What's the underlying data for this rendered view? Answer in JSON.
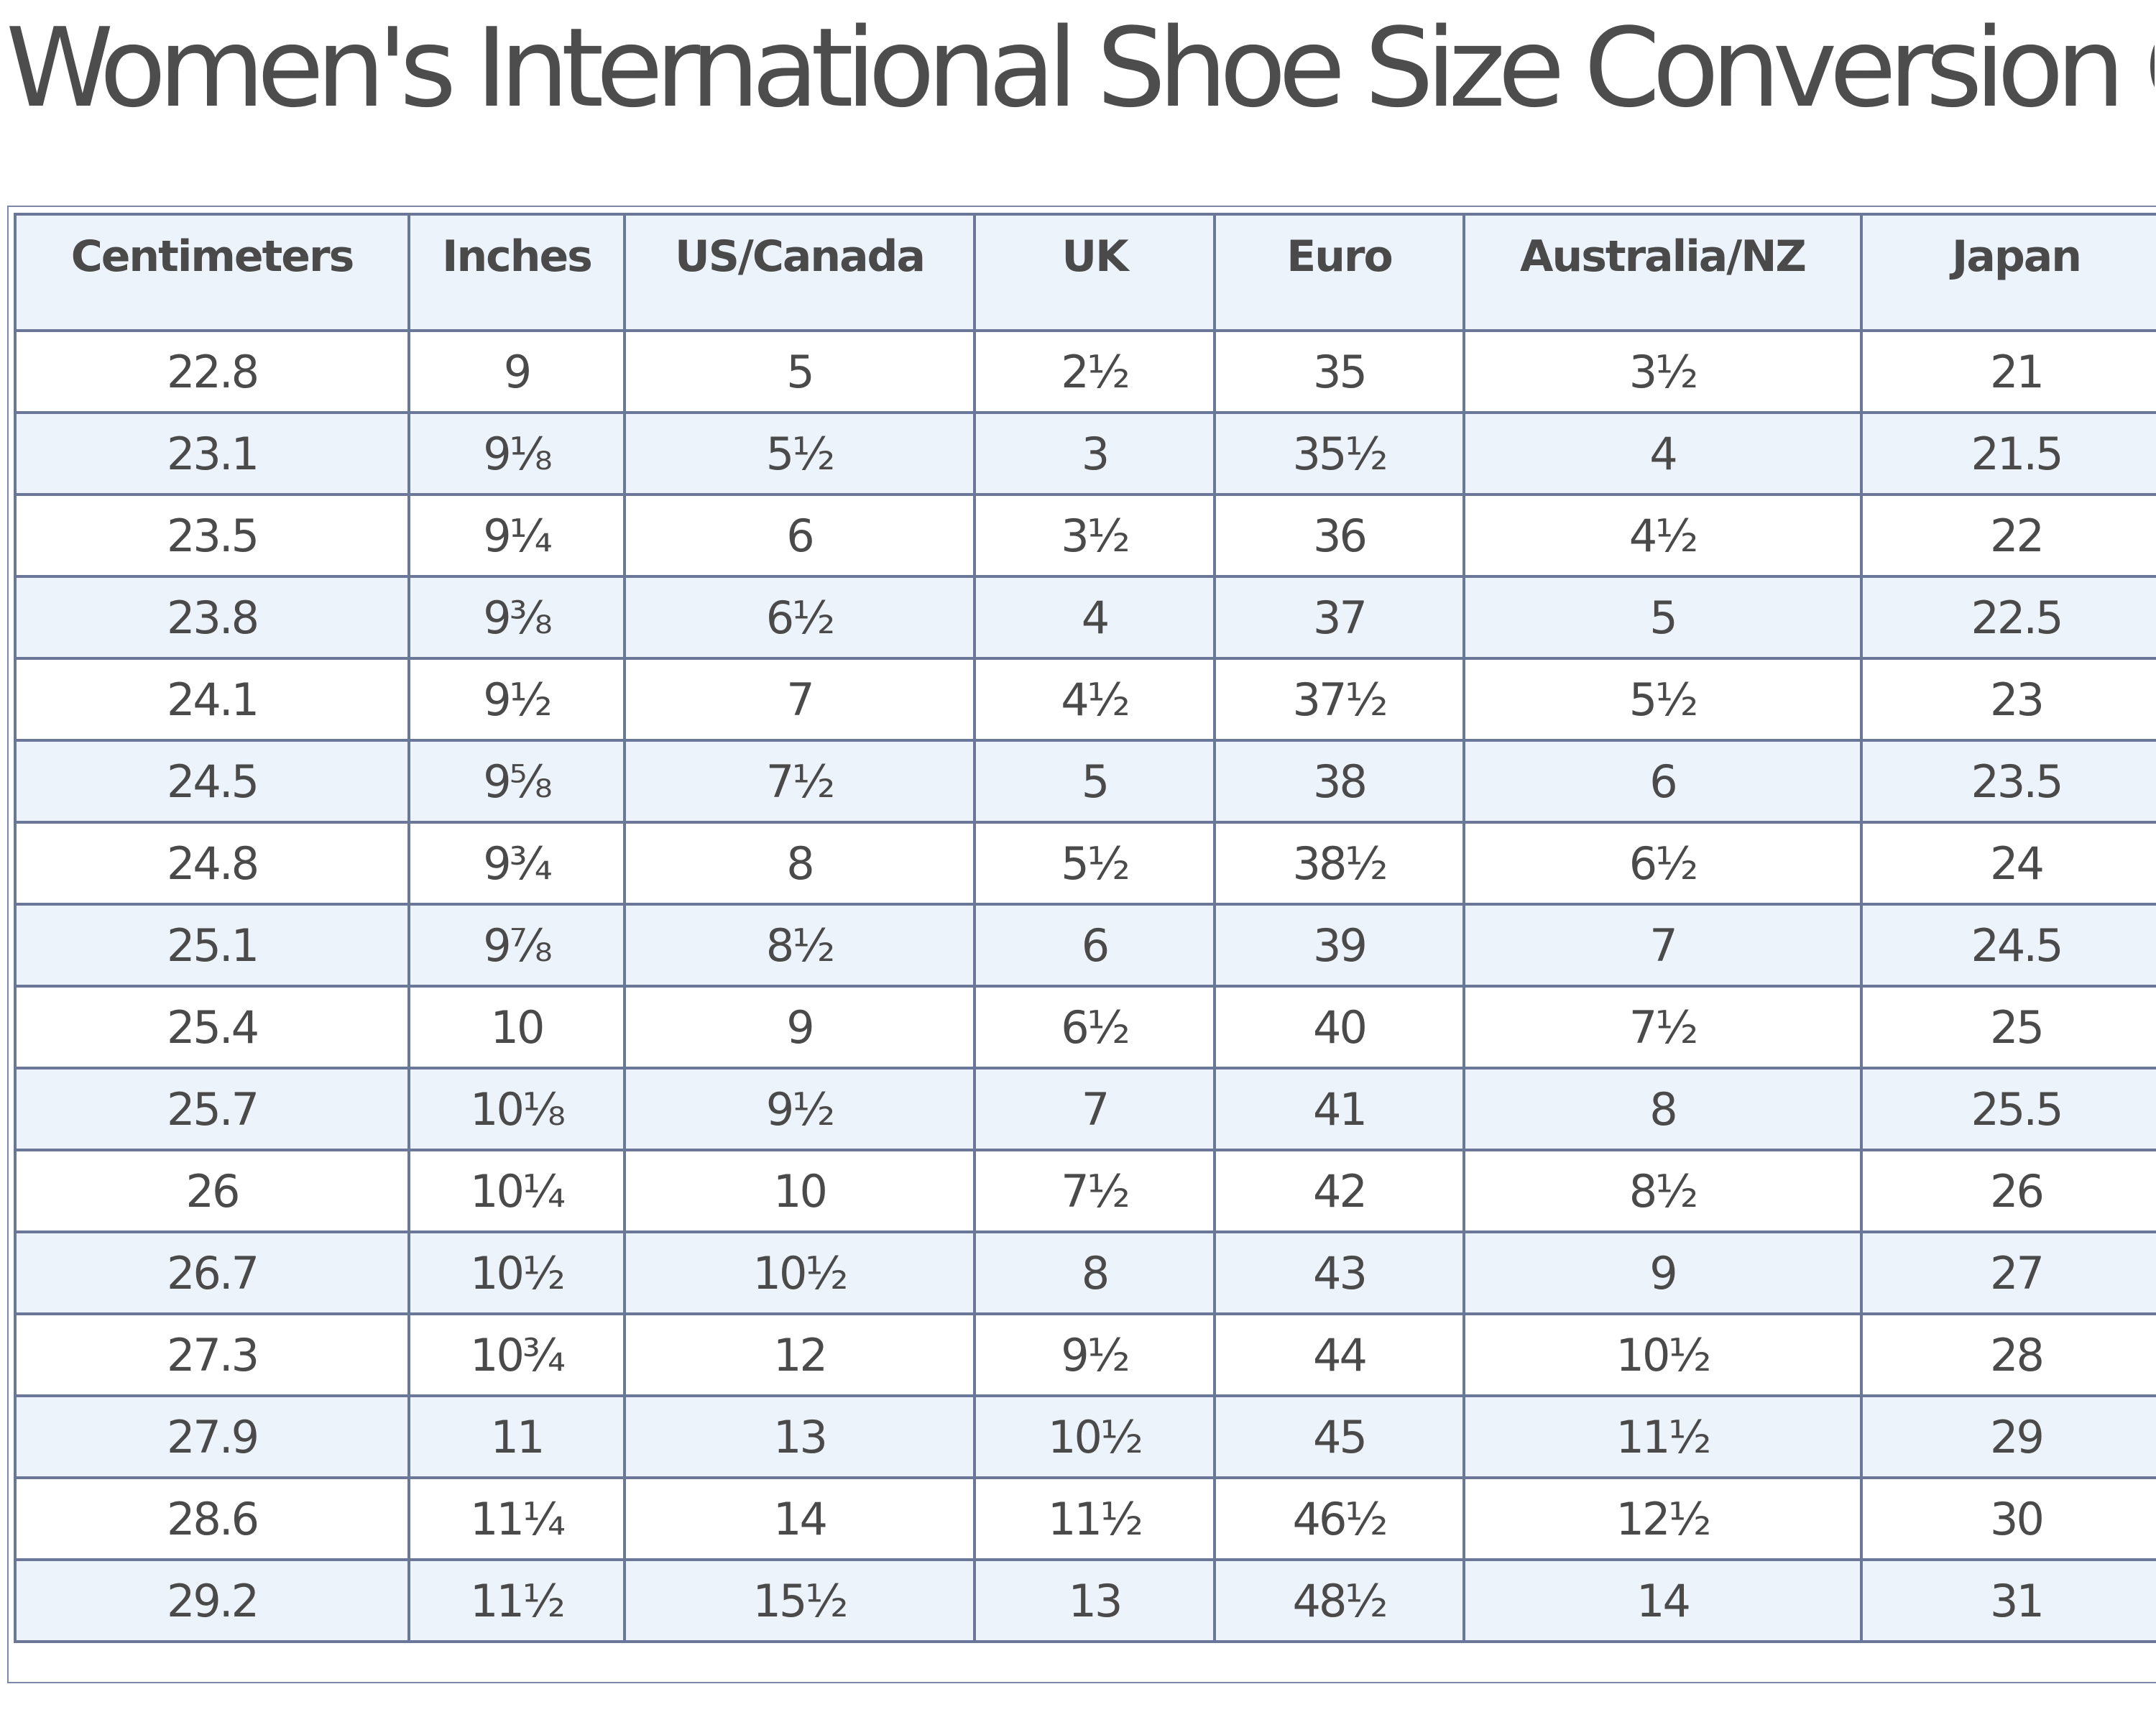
{
  "title": "Women's International Shoe Size Conversion Chart",
  "columns": [
    "Centimeters",
    "Inches",
    "US/Canada",
    "UK",
    "Euro",
    "Australia/NZ",
    "Japan"
  ],
  "rows": [
    [
      "22.8",
      "9",
      "5",
      "2½",
      "35",
      "3½",
      "21"
    ],
    [
      "23.1",
      "9⅛",
      "5½",
      "3",
      "35½",
      "4",
      "21.5"
    ],
    [
      "23.5",
      "9¼",
      "6",
      "3½",
      "36",
      "4½",
      "22"
    ],
    [
      "23.8",
      "9⅜",
      "6½",
      "4",
      "37",
      "5",
      "22.5"
    ],
    [
      "24.1",
      "9½",
      "7",
      "4½",
      "37½",
      "5½",
      "23"
    ],
    [
      "24.5",
      "9⅝",
      "7½",
      "5",
      "38",
      "6",
      "23.5"
    ],
    [
      "24.8",
      "9¾",
      "8",
      "5½",
      "38½",
      "6½",
      "24"
    ],
    [
      "25.1",
      "9⅞",
      "8½",
      "6",
      "39",
      "7",
      "24.5"
    ],
    [
      "25.4",
      "10",
      "9",
      "6½",
      "40",
      "7½",
      "25"
    ],
    [
      "25.7",
      "10⅛",
      "9½",
      "7",
      "41",
      "8",
      "25.5"
    ],
    [
      "26",
      "10¼",
      "10",
      "7½",
      "42",
      "8½",
      "26"
    ],
    [
      "26.7",
      "10½",
      "10½",
      "8",
      "43",
      "9",
      "27"
    ],
    [
      "27.3",
      "10¾",
      "12",
      "9½",
      "44",
      "10½",
      "28"
    ],
    [
      "27.9",
      "11",
      "13",
      "10½",
      "45",
      "11½",
      "29"
    ],
    [
      "28.6",
      "11¼",
      "14",
      "11½",
      "46½",
      "12½",
      "30"
    ],
    [
      "29.2",
      "11½",
      "15½",
      "13",
      "48½",
      "14",
      "31"
    ]
  ]
}
